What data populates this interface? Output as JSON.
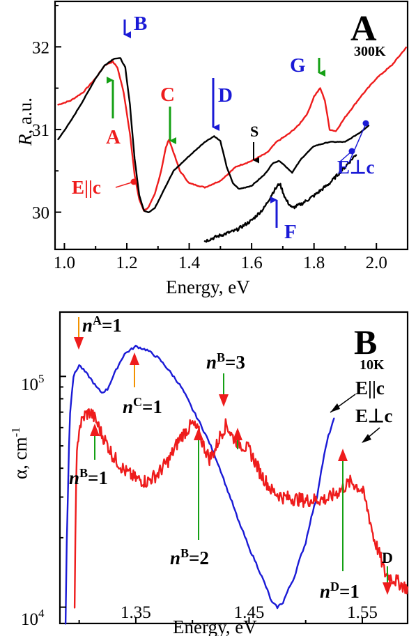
{
  "chart_data": [
    {
      "panel": "A",
      "type": "line",
      "panel_label": "A",
      "condition": "300K",
      "xlabel": "Energy, eV",
      "ylabel": "R, a.u.",
      "xlim": [
        0.97,
        2.1
      ],
      "ylim": [
        29.55,
        32.55
      ],
      "xticks": [
        "1.0",
        "1.2",
        "1.4",
        "1.6",
        "1.8",
        "2.0"
      ],
      "yticks": [
        "30",
        "31",
        "32"
      ],
      "series": [
        {
          "name": "E||c",
          "color": "#ee1c1c",
          "points": [
            [
              0.98,
              31.3
            ],
            [
              1.02,
              31.35
            ],
            [
              1.06,
              31.45
            ],
            [
              1.1,
              31.62
            ],
            [
              1.13,
              31.78
            ],
            [
              1.155,
              31.82
            ],
            [
              1.17,
              31.75
            ],
            [
              1.19,
              31.45
            ],
            [
              1.21,
              30.95
            ],
            [
              1.225,
              30.45
            ],
            [
              1.24,
              30.15
            ],
            [
              1.255,
              30.02
            ],
            [
              1.27,
              30.06
            ],
            [
              1.29,
              30.22
            ],
            [
              1.31,
              30.5
            ],
            [
              1.325,
              30.78
            ],
            [
              1.335,
              30.88
            ],
            [
              1.35,
              30.72
            ],
            [
              1.37,
              30.5
            ],
            [
              1.4,
              30.35
            ],
            [
              1.45,
              30.3
            ],
            [
              1.5,
              30.38
            ],
            [
              1.55,
              30.55
            ],
            [
              1.6,
              30.62
            ],
            [
              1.65,
              30.72
            ],
            [
              1.68,
              30.85
            ],
            [
              1.7,
              30.9
            ],
            [
              1.72,
              30.95
            ],
            [
              1.75,
              31.05
            ],
            [
              1.78,
              31.2
            ],
            [
              1.8,
              31.4
            ],
            [
              1.82,
              31.5
            ],
            [
              1.835,
              31.35
            ],
            [
              1.85,
              31.0
            ],
            [
              1.87,
              30.98
            ],
            [
              1.9,
              31.15
            ],
            [
              1.95,
              31.4
            ],
            [
              2.0,
              31.62
            ],
            [
              2.05,
              31.78
            ],
            [
              2.08,
              31.92
            ],
            [
              2.095,
              31.99
            ]
          ]
        },
        {
          "name": "E⊥c",
          "color": "#000000",
          "points": [
            [
              0.98,
              30.88
            ],
            [
              1.02,
              31.1
            ],
            [
              1.06,
              31.35
            ],
            [
              1.1,
              31.62
            ],
            [
              1.13,
              31.78
            ],
            [
              1.16,
              31.86
            ],
            [
              1.18,
              31.86
            ],
            [
              1.195,
              31.75
            ],
            [
              1.21,
              31.3
            ],
            [
              1.225,
              30.65
            ],
            [
              1.24,
              30.2
            ],
            [
              1.255,
              30.02
            ],
            [
              1.27,
              30.0
            ],
            [
              1.29,
              30.05
            ],
            [
              1.32,
              30.28
            ],
            [
              1.35,
              30.5
            ],
            [
              1.4,
              30.68
            ],
            [
              1.45,
              30.85
            ],
            [
              1.48,
              30.92
            ],
            [
              1.5,
              30.86
            ],
            [
              1.52,
              30.55
            ],
            [
              1.54,
              30.35
            ],
            [
              1.56,
              30.28
            ],
            [
              1.6,
              30.32
            ],
            [
              1.64,
              30.45
            ],
            [
              1.67,
              30.6
            ],
            [
              1.69,
              30.62
            ],
            [
              1.71,
              30.55
            ],
            [
              1.73,
              30.48
            ],
            [
              1.76,
              30.65
            ],
            [
              1.8,
              30.8
            ],
            [
              1.85,
              30.85
            ],
            [
              1.9,
              30.85
            ],
            [
              1.95,
              30.97
            ],
            [
              1.975,
              31.05
            ]
          ]
        },
        {
          "name": "E⊥c (noisy, region F)",
          "color": "#000000",
          "points": [
            [
              1.45,
              29.65
            ],
            [
              1.5,
              29.72
            ],
            [
              1.55,
              29.78
            ],
            [
              1.6,
              29.9
            ],
            [
              1.64,
              30.05
            ],
            [
              1.67,
              30.25
            ],
            [
              1.69,
              30.35
            ],
            [
              1.71,
              30.15
            ],
            [
              1.73,
              30.05
            ],
            [
              1.76,
              30.1
            ],
            [
              1.8,
              30.2
            ],
            [
              1.85,
              30.35
            ],
            [
              1.9,
              30.55
            ],
            [
              1.935,
              30.7
            ]
          ]
        }
      ],
      "annotations": [
        {
          "text": "A",
          "x": 1.15,
          "color": "#ee1c1c"
        },
        {
          "text": "B",
          "x": 1.18,
          "color": "#1a1ad6"
        },
        {
          "text": "C",
          "x": 1.34,
          "color": "#ee1c1c"
        },
        {
          "text": "D",
          "x": 1.48,
          "color": "#1a1ad6"
        },
        {
          "text": "S",
          "x": 1.61,
          "color": "#000000"
        },
        {
          "text": "F",
          "x": 1.68,
          "color": "#1a1ad6"
        },
        {
          "text": "G",
          "x": 1.82,
          "color": "#1a1ad6"
        }
      ],
      "legend": [
        "E||c",
        "E⊥c"
      ]
    },
    {
      "panel": "B",
      "type": "line",
      "panel_label": "B",
      "condition": "10K",
      "xlabel": "Energy, eV",
      "ylabel": "α, cm⁻¹",
      "yscale": "log",
      "xlim": [
        1.283,
        1.59
      ],
      "ylim": [
        8500,
        190000
      ],
      "xticks": [
        "1.35",
        "1.45",
        "1.55"
      ],
      "yticks": [
        "10⁴",
        "10⁵"
      ],
      "series": [
        {
          "name": "E||c",
          "color": "#1a1ad6",
          "points": [
            [
              1.288,
              8500
            ],
            [
              1.29,
              30000
            ],
            [
              1.292,
              70000
            ],
            [
              1.295,
              100000
            ],
            [
              1.3,
              112000
            ],
            [
              1.305,
              105000
            ],
            [
              1.31,
              98000
            ],
            [
              1.315,
              90000
            ],
            [
              1.32,
              85000
            ],
            [
              1.325,
              88000
            ],
            [
              1.33,
              100000
            ],
            [
              1.34,
              125000
            ],
            [
              1.35,
              135000
            ],
            [
              1.36,
              130000
            ],
            [
              1.37,
              120000
            ],
            [
              1.38,
              105000
            ],
            [
              1.39,
              90000
            ],
            [
              1.4,
              72000
            ],
            [
              1.41,
              58000
            ],
            [
              1.42,
              45000
            ],
            [
              1.43,
              33000
            ],
            [
              1.44,
              24000
            ],
            [
              1.45,
              18000
            ],
            [
              1.46,
              14000
            ],
            [
              1.47,
              10500
            ],
            [
              1.475,
              10000
            ],
            [
              1.48,
              10500
            ],
            [
              1.49,
              13500
            ],
            [
              1.5,
              19000
            ],
            [
              1.51,
              30000
            ],
            [
              1.515,
              42000
            ],
            [
              1.52,
              55000
            ],
            [
              1.525,
              65000
            ]
          ]
        },
        {
          "name": "E⊥c",
          "color": "#ee1c1c",
          "points": [
            [
              1.296,
              10000
            ],
            [
              1.298,
              45000
            ],
            [
              1.3,
              60000
            ],
            [
              1.305,
              68000
            ],
            [
              1.31,
              70000
            ],
            [
              1.315,
              64000
            ],
            [
              1.32,
              56000
            ],
            [
              1.33,
              45000
            ],
            [
              1.34,
              39000
            ],
            [
              1.35,
              36000
            ],
            [
              1.36,
              35000
            ],
            [
              1.37,
              38000
            ],
            [
              1.38,
              44000
            ],
            [
              1.39,
              55000
            ],
            [
              1.4,
              62000
            ],
            [
              1.405,
              58000
            ],
            [
              1.41,
              50000
            ],
            [
              1.415,
              44000
            ],
            [
              1.42,
              48000
            ],
            [
              1.425,
              56000
            ],
            [
              1.43,
              62000
            ],
            [
              1.435,
              55000
            ],
            [
              1.44,
              52000
            ],
            [
              1.45,
              48000
            ],
            [
              1.46,
              38000
            ],
            [
              1.47,
              32000
            ],
            [
              1.48,
              30000
            ],
            [
              1.5,
              29000
            ],
            [
              1.52,
              29500
            ],
            [
              1.53,
              32000
            ],
            [
              1.54,
              35000
            ],
            [
              1.55,
              32000
            ],
            [
              1.56,
              20000
            ],
            [
              1.57,
              14000
            ],
            [
              1.58,
              13000
            ],
            [
              1.59,
              12000
            ]
          ]
        }
      ],
      "annotations": [
        {
          "text": "n^A=1",
          "x": 1.3
        },
        {
          "text": "n^C=1",
          "x": 1.347
        },
        {
          "text": "n^B=3",
          "x": 1.432
        },
        {
          "text": "n^B=1",
          "x": 1.313
        },
        {
          "text": "n^B=2",
          "x": 1.404
        },
        {
          "text": "n^D=1",
          "x": 1.535
        },
        {
          "text": "D",
          "x": 1.577
        }
      ],
      "legend": [
        "E||c",
        "E⊥c"
      ]
    }
  ],
  "text": {
    "a_ylabel_var": "R",
    "a_ylabel_unit": ", a.u.",
    "a_xlabel": "Energy, eV",
    "a_panel": "A",
    "a_temp": "300K",
    "b_ylabel": "α, cm",
    "b_ylabel_exp": "-1",
    "b_xlabel": "Energy, eV",
    "b_panel": "B",
    "b_temp": "10K",
    "b_ytick_base": "10",
    "b_ytick_exp1": "5",
    "b_ytick_exp2": "4",
    "lbl_A": "A",
    "lbl_B": "B",
    "lbl_C": "C",
    "lbl_D": "D",
    "lbl_S": "S",
    "lbl_F": "F",
    "lbl_G": "G",
    "lbl_Epar": "E||c",
    "lbl_Eperp": "E⊥c",
    "n_base": "n",
    "nA_sup": "A",
    "nA_val": "=1",
    "nC_sup": "C",
    "nC_val": "=1",
    "nB3_sup": "B",
    "nB3_val": "=3",
    "nB1_sup": "B",
    "nB1_val": "=1",
    "nB2_sup": "B",
    "nB2_val": "=2",
    "nD_sup": "D",
    "nD_val": "=1",
    "lbl_Dsmall": "D",
    "b_Epar": "E||c",
    "b_Eperp": "E⊥c"
  },
  "colors": {
    "red": "#ee1c1c",
    "blue": "#1a1ad6",
    "green": "#14a014",
    "orange": "#f39200",
    "black": "#000000"
  }
}
